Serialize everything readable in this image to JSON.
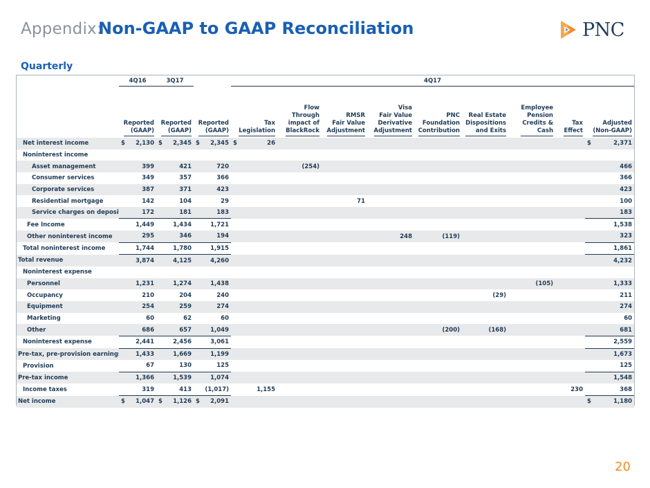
{
  "header": {
    "appendix": "Appendix:",
    "title": "Non-GAAP to GAAP Reconciliation",
    "logo_text": "PNC",
    "brand_colors": {
      "orange": "#f28c28",
      "blue": "#1a5fb4",
      "navy": "#223e5c"
    }
  },
  "subtitle": "Quarterly",
  "table": {
    "periods": [
      "4Q16",
      "3Q17",
      "4Q17"
    ],
    "columns": [
      [
        "Reported",
        "(GAAP)"
      ],
      [
        "Reported",
        "(GAAP)"
      ],
      [
        "Reported",
        "(GAAP)"
      ],
      [
        "Tax",
        "Legislation"
      ],
      [
        "Flow",
        "Through",
        "impact of",
        "BlackRock"
      ],
      [
        "RMSR",
        "Fair Value",
        "Adjustment"
      ],
      [
        "Visa",
        "Fair Value",
        "Derivative",
        "Adjustment"
      ],
      [
        "PNC",
        "Foundation",
        "Contribution"
      ],
      [
        "Real Estate",
        "Dispositions",
        "and Exits"
      ],
      [
        "Employee",
        "Pension",
        "Credits &",
        "Cash"
      ],
      [
        "Tax",
        "Effect"
      ],
      [
        "Adjusted",
        "(Non-GAAP)"
      ]
    ],
    "rows": [
      {
        "label": "Net interest income",
        "indent": 1,
        "cells": [
          "$ 2,130",
          "$ 2,345",
          "$ 2,345",
          "$ 26",
          "",
          "",
          "",
          "",
          "",
          "",
          "",
          "$ 2,371"
        ]
      },
      {
        "label": "Noninterest income",
        "indent": 1,
        "cells": [
          "",
          "",
          "",
          "",
          "",
          "",
          "",
          "",
          "",
          "",
          "",
          ""
        ]
      },
      {
        "label": "Asset management",
        "indent": 3,
        "cells": [
          "399",
          "421",
          "720",
          "",
          "(254)",
          "",
          "",
          "",
          "",
          "",
          "",
          "466"
        ]
      },
      {
        "label": "Consumer services",
        "indent": 3,
        "cells": [
          "349",
          "357",
          "366",
          "",
          "",
          "",
          "",
          "",
          "",
          "",
          "",
          "366"
        ]
      },
      {
        "label": "Corporate services",
        "indent": 3,
        "cells": [
          "387",
          "371",
          "423",
          "",
          "",
          "",
          "",
          "",
          "",
          "",
          "",
          "423"
        ]
      },
      {
        "label": "Residential mortgage",
        "indent": 3,
        "cells": [
          "142",
          "104",
          "29",
          "",
          "",
          "71",
          "",
          "",
          "",
          "",
          "",
          "100"
        ]
      },
      {
        "label": "Service charges on deposits",
        "indent": 3,
        "cells": [
          "172",
          "181",
          "183",
          "",
          "",
          "",
          "",
          "",
          "",
          "",
          "",
          "183"
        ]
      },
      {
        "label": "Fee Income",
        "indent": 2,
        "cells": [
          "1,449",
          "1,434",
          "1,721",
          "",
          "",
          "",
          "",
          "",
          "",
          "",
          "",
          "1,538"
        ]
      },
      {
        "label": "Other noninterest income",
        "indent": 2,
        "cells": [
          "295",
          "346",
          "194",
          "",
          "",
          "",
          "248",
          "(119)",
          "",
          "",
          "",
          "323"
        ]
      },
      {
        "label": "Total noninterest income",
        "indent": 1,
        "cells": [
          "1,744",
          "1,780",
          "1,915",
          "",
          "",
          "",
          "",
          "",
          "",
          "",
          "",
          "1,861"
        ]
      },
      {
        "label": "Total revenue",
        "indent": 0,
        "cells": [
          "3,874",
          "4,125",
          "4,260",
          "",
          "",
          "",
          "",
          "",
          "",
          "",
          "",
          "4,232"
        ]
      },
      {
        "label": "Noninterest expense",
        "indent": 1,
        "cells": [
          "",
          "",
          "",
          "",
          "",
          "",
          "",
          "",
          "",
          "",
          "",
          ""
        ]
      },
      {
        "label": "Personnel",
        "indent": 2,
        "cells": [
          "1,231",
          "1,274",
          "1,438",
          "",
          "",
          "",
          "",
          "",
          "",
          "(105)",
          "",
          "1,333"
        ]
      },
      {
        "label": "Occupancy",
        "indent": 2,
        "cells": [
          "210",
          "204",
          "240",
          "",
          "",
          "",
          "",
          "",
          "(29)",
          "",
          "",
          "211"
        ]
      },
      {
        "label": "Equipment",
        "indent": 2,
        "cells": [
          "254",
          "259",
          "274",
          "",
          "",
          "",
          "",
          "",
          "",
          "",
          "",
          "274"
        ]
      },
      {
        "label": "Marketing",
        "indent": 2,
        "cells": [
          "60",
          "62",
          "60",
          "",
          "",
          "",
          "",
          "",
          "",
          "",
          "",
          "60"
        ]
      },
      {
        "label": "Other",
        "indent": 2,
        "cells": [
          "686",
          "657",
          "1,049",
          "",
          "",
          "",
          "",
          "(200)",
          "(168)",
          "",
          "",
          "681"
        ]
      },
      {
        "label": "Noninterest expense",
        "indent": 1,
        "cells": [
          "2,441",
          "2,456",
          "3,061",
          "",
          "",
          "",
          "",
          "",
          "",
          "",
          "",
          "2,559"
        ]
      },
      {
        "label": "Pre-tax, pre-provision earnings",
        "indent": 0,
        "cells": [
          "1,433",
          "1,669",
          "1,199",
          "",
          "",
          "",
          "",
          "",
          "",
          "",
          "",
          "1,673"
        ]
      },
      {
        "label": "Provision",
        "indent": 1,
        "cells": [
          "67",
          "130",
          "125",
          "",
          "",
          "",
          "",
          "",
          "",
          "",
          "",
          "125"
        ]
      },
      {
        "label": "Pre-tax income",
        "indent": 0,
        "cells": [
          "1,366",
          "1,539",
          "1,074",
          "",
          "",
          "",
          "",
          "",
          "",
          "",
          "",
          "1,548"
        ]
      },
      {
        "label": "Income taxes",
        "indent": 1,
        "cells": [
          "319",
          "413",
          "(1,017)",
          "1,155",
          "",
          "",
          "",
          "",
          "",
          "",
          "230",
          "368"
        ]
      },
      {
        "label": "Net income",
        "indent": 0,
        "cells": [
          "$ 1,047",
          "$ 1,126",
          "$ 2,091",
          "",
          "",
          "",
          "",
          "",
          "",
          "",
          "",
          "$ 1,180"
        ]
      }
    ]
  },
  "page_number": "20"
}
